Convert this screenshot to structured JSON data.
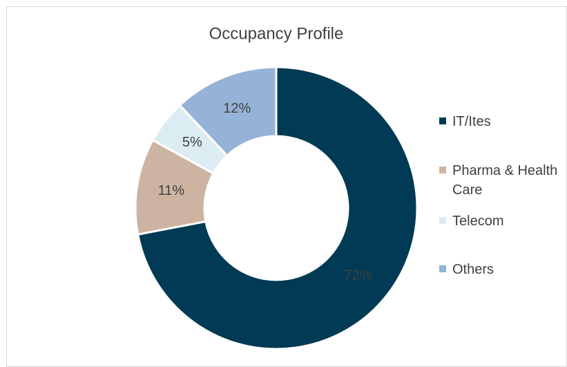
{
  "chart_data": {
    "type": "donut",
    "title": "Occupancy Profile",
    "categories": [
      "IT/Ites",
      "Pharma & Health Care",
      "Telecom",
      "Others"
    ],
    "values": [
      72,
      11,
      5,
      12
    ],
    "value_labels": [
      "72%",
      "11%",
      "5%",
      "12%"
    ],
    "colors": [
      "#003a54",
      "#cdb4a2",
      "#dcecf3",
      "#95b3d7"
    ],
    "legend": "right"
  }
}
